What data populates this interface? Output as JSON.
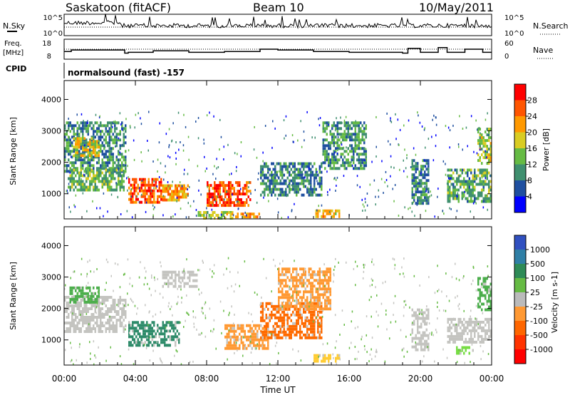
{
  "header": {
    "station": "Saskatoon (fitACF)",
    "beam": "Beam 10",
    "date": "10/May/2011"
  },
  "noise_panel": {
    "left_label": "N.Sky",
    "right_label": "N.Search",
    "left_ticks": [
      "10^5",
      "10^0"
    ],
    "right_ticks": [
      "10^5",
      "10^0"
    ]
  },
  "freq_panel": {
    "left_label_1": "Freq.",
    "left_label_2": "[MHz]",
    "right_label": "Nave",
    "left_ticks": [
      "18",
      "8"
    ],
    "right_ticks": [
      "60",
      "0"
    ]
  },
  "cpid": {
    "label": "CPID",
    "text": "normalsound (fast) -157"
  },
  "colors": {
    "power_scale": [
      "#0000ff",
      "#1f4fa0",
      "#3f8f6f",
      "#66bb44",
      "#d9cc22",
      "#ff9900",
      "#ff5500",
      "#ff0000"
    ],
    "velocity_scale": [
      "#3050c0",
      "#2f7fa6",
      "#2e8b57",
      "#66bb44",
      "#bbbbbb",
      "#ff9933",
      "#ff6600",
      "#ff3300",
      "#ff0000"
    ]
  },
  "chart_data": [
    {
      "type": "heatmap",
      "name": "power",
      "ylabel": "Slant Range [km]",
      "yticks": [
        "1000",
        "2000",
        "3000",
        "4000"
      ],
      "ylim": [
        200,
        4600
      ],
      "xlim": [
        0,
        24
      ],
      "colorbar_label": "Power [dB]",
      "colorbar_ticks": [
        "4",
        "8",
        "12",
        "16",
        "20",
        "24",
        "28"
      ],
      "colorbar_range": [
        0,
        32
      ],
      "regions": [
        {
          "t0": 0.0,
          "t1": 3.5,
          "r0": 1700,
          "r1": 3300,
          "v": 10
        },
        {
          "t0": 0.2,
          "t1": 3.4,
          "r0": 1100,
          "r1": 1800,
          "v": 13
        },
        {
          "t0": 0.5,
          "t1": 2.0,
          "r0": 2200,
          "r1": 2800,
          "v": 18
        },
        {
          "t0": 3.6,
          "t1": 5.5,
          "r0": 700,
          "r1": 1500,
          "v": 26
        },
        {
          "t0": 5.5,
          "t1": 7.0,
          "r0": 800,
          "r1": 1300,
          "v": 22
        },
        {
          "t0": 8.0,
          "t1": 10.5,
          "r0": 600,
          "r1": 1400,
          "v": 27
        },
        {
          "t0": 7.5,
          "t1": 9.5,
          "r0": 250,
          "r1": 450,
          "v": 16
        },
        {
          "t0": 9.0,
          "t1": 11.0,
          "r0": 250,
          "r1": 400,
          "v": 22
        },
        {
          "t0": 11.0,
          "t1": 14.5,
          "r0": 1000,
          "r1": 2000,
          "v": 9
        },
        {
          "t0": 14.0,
          "t1": 15.5,
          "r0": 300,
          "r1": 500,
          "v": 20
        },
        {
          "t0": 14.5,
          "t1": 17.0,
          "r0": 1800,
          "r1": 3300,
          "v": 11
        },
        {
          "t0": 19.5,
          "t1": 20.5,
          "r0": 700,
          "r1": 2100,
          "v": 9
        },
        {
          "t0": 21.5,
          "t1": 24.0,
          "r0": 800,
          "r1": 1800,
          "v": 12
        },
        {
          "t0": 23.2,
          "t1": 24.0,
          "r0": 2000,
          "r1": 3100,
          "v": 16
        }
      ]
    },
    {
      "type": "heatmap",
      "name": "velocity",
      "ylabel": "Slant Range [km]",
      "yticks": [
        "1000",
        "2000",
        "3000",
        "4000"
      ],
      "ylim": [
        200,
        4600
      ],
      "xlim": [
        0,
        24
      ],
      "xticks": [
        "00:00",
        "04:00",
        "08:00",
        "12:00",
        "16:00",
        "20:00",
        "00:00"
      ],
      "xlabel": "Time UT",
      "colorbar_label": "Velocity [m s-1]",
      "colorbar_ticks": [
        "1000",
        "500",
        "100",
        "25",
        "-25",
        "-100",
        "-500",
        "-1000"
      ],
      "regions": [
        {
          "t0": 0.0,
          "t1": 3.5,
          "r0": 1300,
          "r1": 2400,
          "v": "gray"
        },
        {
          "t0": 0.3,
          "t1": 2.0,
          "r0": 2200,
          "r1": 2700,
          "v": "green"
        },
        {
          "t0": 3.6,
          "t1": 6.5,
          "r0": 800,
          "r1": 1600,
          "v": "teal"
        },
        {
          "t0": 5.5,
          "t1": 7.5,
          "r0": 2700,
          "r1": 3200,
          "v": "gray"
        },
        {
          "t0": 9.0,
          "t1": 11.5,
          "r0": 700,
          "r1": 1500,
          "v": "orange"
        },
        {
          "t0": 11.0,
          "t1": 14.5,
          "r0": 1100,
          "r1": 2200,
          "v": "red-orange"
        },
        {
          "t0": 12.0,
          "t1": 15.0,
          "r0": 2000,
          "r1": 3300,
          "v": "orange"
        },
        {
          "t0": 14.0,
          "t1": 15.5,
          "r0": 300,
          "r1": 550,
          "v": "yellow"
        },
        {
          "t0": 19.5,
          "t1": 20.5,
          "r0": 700,
          "r1": 2000,
          "v": "gray"
        },
        {
          "t0": 21.5,
          "t1": 24.0,
          "r0": 900,
          "r1": 1700,
          "v": "gray"
        },
        {
          "t0": 22.0,
          "t1": 23.0,
          "r0": 550,
          "r1": 800,
          "v": "light-green"
        },
        {
          "t0": 23.2,
          "t1": 24.0,
          "r0": 2000,
          "r1": 3000,
          "v": "green"
        }
      ]
    }
  ]
}
